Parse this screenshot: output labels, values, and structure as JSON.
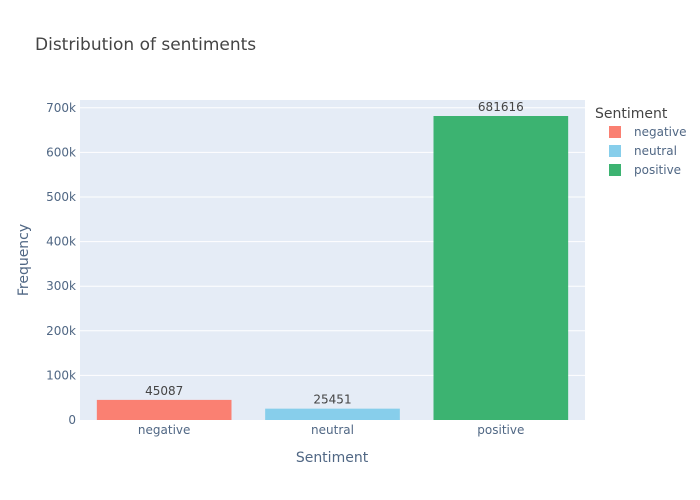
{
  "chart_data": {
    "type": "bar",
    "title": "Distribution of sentiments",
    "xlabel": "Sentiment",
    "ylabel": "Frequency",
    "categories": [
      "negative",
      "neutral",
      "positive"
    ],
    "values": [
      45087,
      25451,
      681616
    ],
    "data_labels": [
      "45087",
      "25451",
      "681616"
    ],
    "colors": [
      "#fa8072",
      "#87ceeb",
      "#3cb371"
    ],
    "ylim": [
      0,
      717490
    ],
    "yticks": [
      0,
      100000,
      200000,
      300000,
      400000,
      500000,
      600000,
      700000
    ],
    "ytick_labels": [
      "0",
      "100k",
      "200k",
      "300k",
      "400k",
      "500k",
      "600k",
      "700k"
    ],
    "grid": true,
    "plot_bg": "#e5ecf6",
    "legend": {
      "title": "Sentiment",
      "position": "right",
      "entries": [
        "negative",
        "neutral",
        "positive"
      ]
    }
  }
}
